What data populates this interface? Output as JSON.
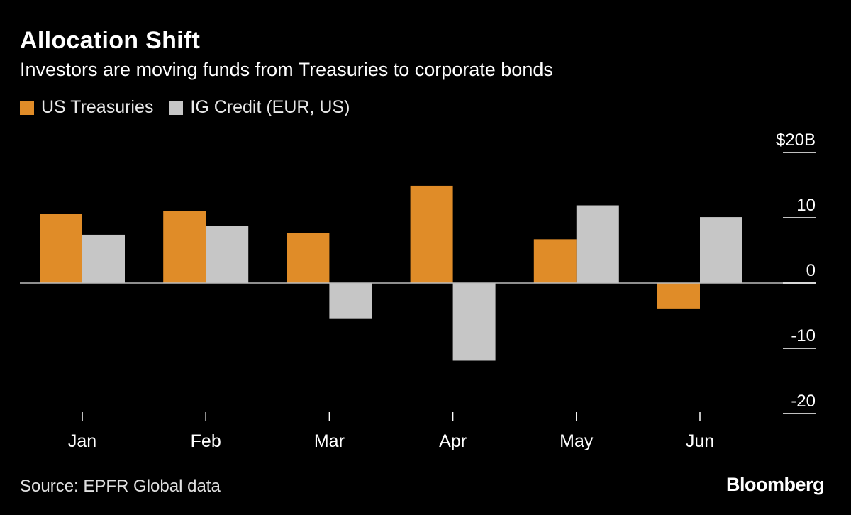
{
  "title": "Allocation Shift",
  "subtitle": "Investors are moving funds from Treasuries to corporate bonds",
  "source": "Source: EPFR Global data",
  "brand": "Bloomberg",
  "colors": {
    "background": "#000000",
    "us_treasuries": "#e08c28",
    "ig_credit": "#c6c6c6",
    "zero_line": "#bdbdbd",
    "axis_text": "#ffffff"
  },
  "chart_data": {
    "type": "bar",
    "categories": [
      "Jan",
      "Feb",
      "Mar",
      "Apr",
      "May",
      "Jun"
    ],
    "series": [
      {
        "name": "US Treasuries",
        "values": [
          10.6,
          11.0,
          7.7,
          14.9,
          6.7,
          -3.9
        ],
        "color": "#e08c28"
      },
      {
        "name": "IG Credit (EUR, US)",
        "values": [
          7.4,
          8.8,
          -5.4,
          -11.9,
          11.9,
          10.1
        ],
        "color": "#c6c6c6"
      }
    ],
    "ylim": [
      -20,
      20
    ],
    "yticks": [
      20,
      10,
      0,
      -10,
      -20
    ],
    "ytick_labels": [
      "$20B",
      "10",
      "0",
      "-10",
      "-20"
    ],
    "y_axis_position": "right",
    "legend": "top-left",
    "grid": false
  }
}
